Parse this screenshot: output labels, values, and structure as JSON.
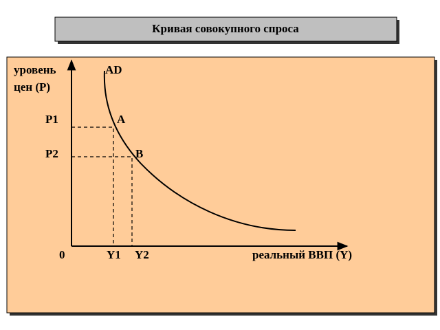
{
  "header": {
    "title": "Кривая совокупного спроса"
  },
  "diagram": {
    "y_axis_label": [
      "уровень",
      "цен (P)"
    ],
    "curve_label": "AD",
    "price_levels": [
      "P1",
      "P2"
    ],
    "points": [
      "A",
      "B"
    ],
    "origin": "0",
    "outputs": [
      "Y1",
      "Y2"
    ],
    "x_axis_label": "реальный ВВП (Y)"
  }
}
